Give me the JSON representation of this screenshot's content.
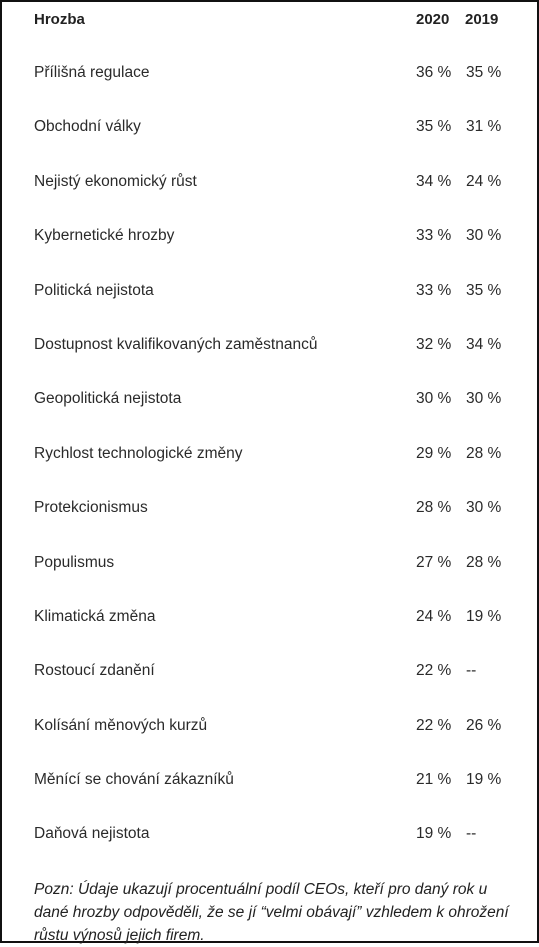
{
  "table": {
    "headers": {
      "name": "Hrozba",
      "y2020": "2020",
      "y2019": "2019"
    },
    "rows": [
      {
        "name": "Přílišná regulace",
        "y2020": "36 %",
        "y2019": "35 %"
      },
      {
        "name": "Obchodní války",
        "y2020": "35 %",
        "y2019": "31 %"
      },
      {
        "name": "Nejistý ekonomický růst",
        "y2020": "34 %",
        "y2019": "24 %"
      },
      {
        "name": "Kybernetické hrozby",
        "y2020": "33 %",
        "y2019": "30 %"
      },
      {
        "name": "Politická nejistota",
        "y2020": "33 %",
        "y2019": "35 %"
      },
      {
        "name": "Dostupnost kvalifikovaných zaměstnanců",
        "y2020": "32 %",
        "y2019": "34 %"
      },
      {
        "name": "Geopolitická nejistota",
        "y2020": "30 %",
        "y2019": "30 %"
      },
      {
        "name": "Rychlost technologické změny",
        "y2020": "29 %",
        "y2019": "28 %"
      },
      {
        "name": "Protekcionismus",
        "y2020": "28 %",
        "y2019": "30 %"
      },
      {
        "name": "Populismus",
        "y2020": "27 %",
        "y2019": "28 %"
      },
      {
        "name": "Klimatická změna",
        "y2020": "24 %",
        "y2019": "19 %"
      },
      {
        "name": "Rostoucí zdanění",
        "y2020": "22 %",
        "y2019": "--"
      },
      {
        "name": "Kolísání měnových kurzů",
        "y2020": "22 %",
        "y2019": "26 %"
      },
      {
        "name": "Měnící se chování zákazníků",
        "y2020": "21 %",
        "y2019": "19 %"
      },
      {
        "name": "Daňová nejistota",
        "y2020": "19 %",
        "y2019": "--"
      }
    ]
  },
  "note": "Pozn: Údaje ukazují procentuální podíl CEOs, kteří pro daný rok u dané hrozby odpověděli, že se jí “velmi obávají” vzhledem k ohrožení růstu výnosů jejich firem."
}
